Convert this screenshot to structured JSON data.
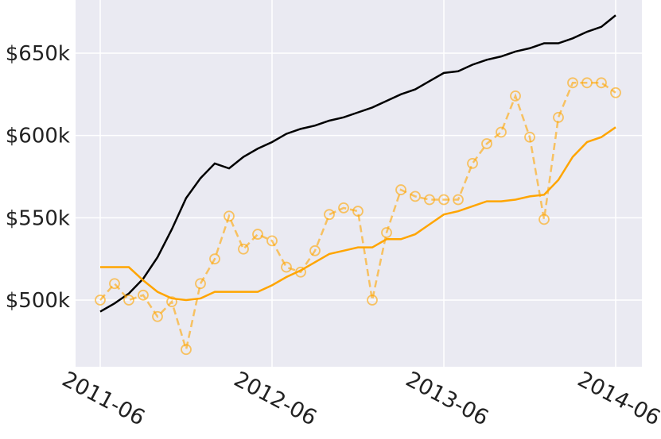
{
  "chart_data": {
    "type": "line",
    "x": [
      "2011-06",
      "2011-07",
      "2011-08",
      "2011-09",
      "2011-10",
      "2011-11",
      "2011-12",
      "2012-01",
      "2012-02",
      "2012-03",
      "2012-04",
      "2012-05",
      "2012-06",
      "2012-07",
      "2012-08",
      "2012-09",
      "2012-10",
      "2012-11",
      "2012-12",
      "2013-01",
      "2013-02",
      "2013-03",
      "2013-04",
      "2013-05",
      "2013-06",
      "2013-07",
      "2013-08",
      "2013-09",
      "2013-10",
      "2013-11",
      "2013-12",
      "2014-01",
      "2014-02",
      "2014-03",
      "2014-04",
      "2014-05",
      "2014-06"
    ],
    "series": [
      {
        "color": "#000000",
        "style": "solid",
        "markers": false,
        "values": [
          493,
          498,
          504,
          513,
          526,
          543,
          562,
          574,
          583,
          580,
          587,
          592,
          596,
          601,
          604,
          606,
          609,
          611,
          614,
          617,
          621,
          625,
          628,
          633,
          638,
          639,
          643,
          646,
          648,
          651,
          653,
          656,
          656,
          659,
          663,
          666,
          673
        ]
      },
      {
        "color": "#ffa500",
        "style": "solid",
        "markers": false,
        "values": [
          520,
          520,
          520,
          512,
          505,
          501,
          500,
          501,
          505,
          505,
          505,
          505,
          509,
          514,
          518,
          523,
          528,
          530,
          532,
          532,
          537,
          537,
          540,
          546,
          552,
          554,
          557,
          560,
          560,
          561,
          563,
          564,
          573,
          587,
          596,
          599,
          605
        ]
      },
      {
        "color": "#ffa500",
        "style": "dashed",
        "markers": true,
        "opacity": 0.6,
        "values": [
          500,
          510,
          500,
          503,
          490,
          499,
          470,
          510,
          525,
          551,
          531,
          540,
          536,
          520,
          517,
          530,
          552,
          556,
          554,
          500,
          541,
          567,
          563,
          561,
          561,
          561,
          583,
          595,
          602,
          624,
          599,
          549,
          611,
          632,
          632,
          632,
          626
        ]
      }
    ],
    "ylim": [
      459.5,
      682.3
    ],
    "yticks": [
      {
        "value": 500,
        "label": "$500k"
      },
      {
        "value": 550,
        "label": "$550k"
      },
      {
        "value": 600,
        "label": "$600k"
      },
      {
        "value": 650,
        "label": "$650k"
      }
    ],
    "xticks": [
      "2011-06",
      "2012-06",
      "2013-06",
      "2014-06"
    ],
    "grid": true
  }
}
